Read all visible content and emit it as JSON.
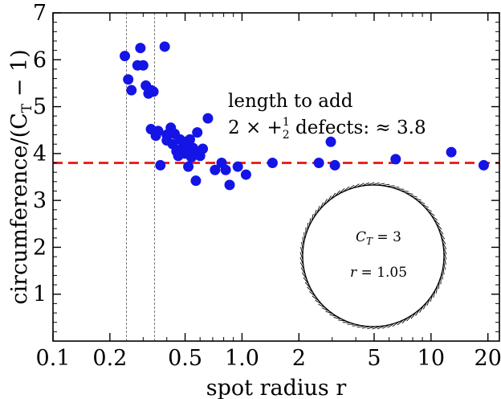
{
  "chart_data": {
    "type": "scatter",
    "title": "",
    "xlabel": "spot radius r",
    "ylabel": "circumference/(C",
    "ylabel_sub": "T",
    "ylabel_tail": " − 1)",
    "xscale": "log",
    "xlim": [
      0.1,
      23
    ],
    "ylim": [
      0,
      7
    ],
    "x_ticks": [
      0.1,
      0.2,
      0.5,
      1.0,
      2,
      5,
      10,
      20
    ],
    "x_tick_labels": [
      "0.1",
      "0.2",
      "0.5",
      "1.0",
      "2",
      "5",
      "10",
      "20"
    ],
    "y_ticks": [
      1,
      2,
      3,
      4,
      5,
      6,
      7
    ],
    "y_tick_labels": [
      "1",
      "2",
      "3",
      "4",
      "5",
      "6",
      "7"
    ],
    "reference_line": {
      "y": 3.8,
      "style": "dashed",
      "color": "#e8251f"
    },
    "vertical_guides": [
      0.245,
      0.345
    ],
    "annotation": {
      "line1": "length to add",
      "line2_prefix": "2 × +",
      "line2_frac_num": "1",
      "line2_frac_den": "2",
      "line2_suffix": " defects: ≈ 3.8"
    },
    "inset": {
      "line1_var": "C",
      "line1_sub": "T",
      "line1_rest": " = 3",
      "line2_var": "r",
      "line2_rest": " = 1.05"
    },
    "marker_color": "#1414e6",
    "series": [
      {
        "points": [
          [
            0.24,
            6.08
          ],
          [
            0.25,
            5.58
          ],
          [
            0.26,
            5.35
          ],
          [
            0.28,
            5.88
          ],
          [
            0.29,
            6.25
          ],
          [
            0.3,
            5.88
          ],
          [
            0.31,
            5.45
          ],
          [
            0.32,
            5.28
          ],
          [
            0.33,
            5.35
          ],
          [
            0.34,
            5.32
          ],
          [
            0.33,
            4.52
          ],
          [
            0.35,
            4.38
          ],
          [
            0.36,
            4.48
          ],
          [
            0.37,
            3.75
          ],
          [
            0.39,
            6.28
          ],
          [
            0.4,
            4.4
          ],
          [
            0.4,
            4.28
          ],
          [
            0.42,
            4.55
          ],
          [
            0.43,
            4.2
          ],
          [
            0.44,
            4.42
          ],
          [
            0.45,
            4.05
          ],
          [
            0.46,
            3.95
          ],
          [
            0.47,
            4.3
          ],
          [
            0.48,
            4.1
          ],
          [
            0.49,
            4.25
          ],
          [
            0.5,
            4.0
          ],
          [
            0.51,
            4.18
          ],
          [
            0.52,
            3.72
          ],
          [
            0.53,
            4.3
          ],
          [
            0.54,
            3.92
          ],
          [
            0.55,
            4.12
          ],
          [
            0.56,
            4.05
          ],
          [
            0.57,
            3.42
          ],
          [
            0.58,
            4.45
          ],
          [
            0.6,
            3.95
          ],
          [
            0.62,
            4.1
          ],
          [
            0.66,
            4.75
          ],
          [
            0.72,
            3.65
          ],
          [
            0.78,
            3.8
          ],
          [
            0.82,
            3.65
          ],
          [
            0.86,
            3.33
          ],
          [
            0.95,
            3.72
          ],
          [
            1.05,
            3.55
          ],
          [
            1.45,
            3.8
          ],
          [
            2.55,
            3.8
          ],
          [
            2.95,
            4.25
          ],
          [
            3.1,
            3.75
          ],
          [
            6.5,
            3.88
          ],
          [
            12.8,
            4.03
          ],
          [
            19.0,
            3.75
          ]
        ]
      }
    ]
  }
}
